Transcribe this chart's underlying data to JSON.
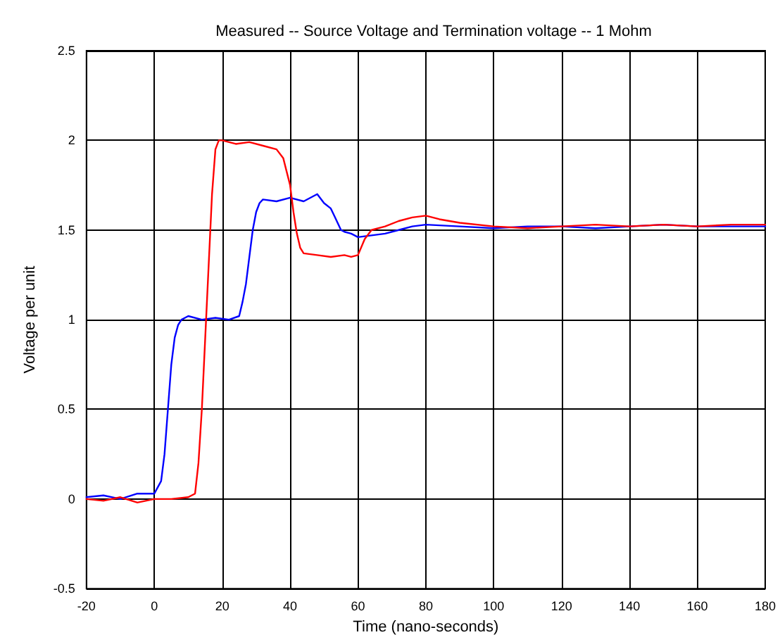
{
  "chart_data": {
    "type": "line",
    "title": "Measured -- Source Voltage and Termination voltage -- 1 Mohm",
    "xlabel": "Time (nano-seconds)",
    "ylabel": "Voltage per unit",
    "xlim": [
      -20,
      180
    ],
    "xticks": [
      -20,
      0,
      20,
      40,
      60,
      80,
      100,
      120,
      140,
      160,
      180
    ],
    "ylim": [
      -0.5,
      2.5
    ],
    "yticks": [
      -0.5,
      0,
      0.5,
      1,
      1.5,
      2,
      2.5
    ],
    "grid": true,
    "marker": "none",
    "line_style": "solid",
    "series": [
      {
        "color": "#0000ff",
        "x": [
          -20,
          -15,
          -10,
          -5,
          0,
          2,
          3,
          4,
          5,
          6,
          7,
          8,
          10,
          14,
          18,
          22,
          25,
          26,
          27,
          28,
          29,
          30,
          31,
          32,
          36,
          40,
          44,
          48,
          50,
          52,
          53,
          54,
          55,
          56,
          58,
          60,
          64,
          68,
          72,
          76,
          80,
          90,
          100,
          110,
          120,
          130,
          140,
          150,
          160,
          170,
          180
        ],
        "values": [
          0.01,
          0.02,
          0,
          0.03,
          0.03,
          0.1,
          0.25,
          0.5,
          0.75,
          0.9,
          0.97,
          1.0,
          1.02,
          1.0,
          1.01,
          1.0,
          1.02,
          1.1,
          1.2,
          1.35,
          1.5,
          1.6,
          1.65,
          1.67,
          1.66,
          1.68,
          1.66,
          1.7,
          1.65,
          1.62,
          1.58,
          1.54,
          1.5,
          1.49,
          1.48,
          1.46,
          1.47,
          1.48,
          1.5,
          1.52,
          1.53,
          1.52,
          1.51,
          1.52,
          1.52,
          1.51,
          1.52,
          1.53,
          1.52,
          1.52,
          1.52
        ]
      },
      {
        "color": "#ff0000",
        "x": [
          -20,
          -15,
          -10,
          -5,
          0,
          5,
          10,
          12,
          13,
          14,
          15,
          16,
          17,
          18,
          19,
          20,
          24,
          28,
          32,
          36,
          38,
          40,
          41,
          42,
          43,
          44,
          48,
          52,
          56,
          58,
          60,
          62,
          64,
          68,
          72,
          76,
          80,
          84,
          90,
          100,
          110,
          120,
          130,
          140,
          150,
          160,
          170,
          180
        ],
        "values": [
          0,
          -0.01,
          0.01,
          -0.02,
          0,
          0,
          0.01,
          0.03,
          0.2,
          0.5,
          0.9,
          1.3,
          1.7,
          1.95,
          2.0,
          2.0,
          1.98,
          1.99,
          1.97,
          1.95,
          1.9,
          1.75,
          1.6,
          1.48,
          1.4,
          1.37,
          1.36,
          1.35,
          1.36,
          1.35,
          1.36,
          1.45,
          1.5,
          1.52,
          1.55,
          1.57,
          1.58,
          1.56,
          1.54,
          1.52,
          1.51,
          1.52,
          1.53,
          1.52,
          1.53,
          1.52,
          1.53,
          1.53
        ]
      }
    ]
  }
}
